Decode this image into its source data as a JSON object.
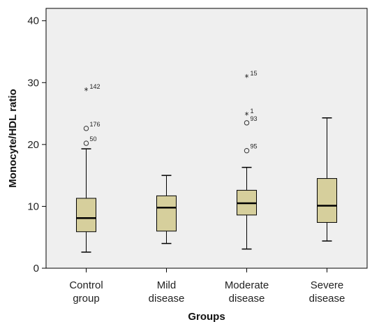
{
  "chart_data": {
    "type": "box",
    "xlabel": "Groups",
    "ylabel": "Monocyte/HDL ratio",
    "ylim": [
      0,
      42
    ],
    "yticks": [
      "0",
      "10",
      "20",
      "30",
      "40"
    ],
    "ytick_values": [
      0,
      10,
      20,
      30,
      40
    ],
    "grid": false,
    "colors": {
      "box_fill": "#d6cf9c",
      "plot_bg": "#efefef",
      "line": "#000000"
    },
    "groups": [
      {
        "label_line1": "Control",
        "label_line2": "group",
        "whisker_low": 2.6,
        "q1": 5.9,
        "median": 8.1,
        "q3": 11.3,
        "whisker_high": 19.3,
        "outliers": [
          {
            "value": 20.2,
            "marker": "circle",
            "label": "50"
          },
          {
            "value": 22.6,
            "marker": "circle",
            "label": "176"
          },
          {
            "value": 28.7,
            "marker": "star",
            "label": "142"
          }
        ]
      },
      {
        "label_line1": "Mild",
        "label_line2": "disease",
        "whisker_low": 4.0,
        "q1": 6.0,
        "median": 9.8,
        "q3": 11.7,
        "whisker_high": 15.0,
        "outliers": []
      },
      {
        "label_line1": "Moderate",
        "label_line2": "disease",
        "whisker_low": 3.1,
        "q1": 8.6,
        "median": 10.5,
        "q3": 12.6,
        "whisker_high": 16.3,
        "outliers": [
          {
            "value": 19.0,
            "marker": "circle",
            "label": "95"
          },
          {
            "value": 23.5,
            "marker": "circle",
            "label": "93"
          },
          {
            "value": 24.7,
            "marker": "star",
            "label": "1"
          },
          {
            "value": 30.8,
            "marker": "star",
            "label": "15"
          }
        ]
      },
      {
        "label_line1": "Severe",
        "label_line2": "disease",
        "whisker_low": 4.4,
        "q1": 7.4,
        "median": 10.1,
        "q3": 14.5,
        "whisker_high": 24.3,
        "outliers": []
      }
    ]
  }
}
